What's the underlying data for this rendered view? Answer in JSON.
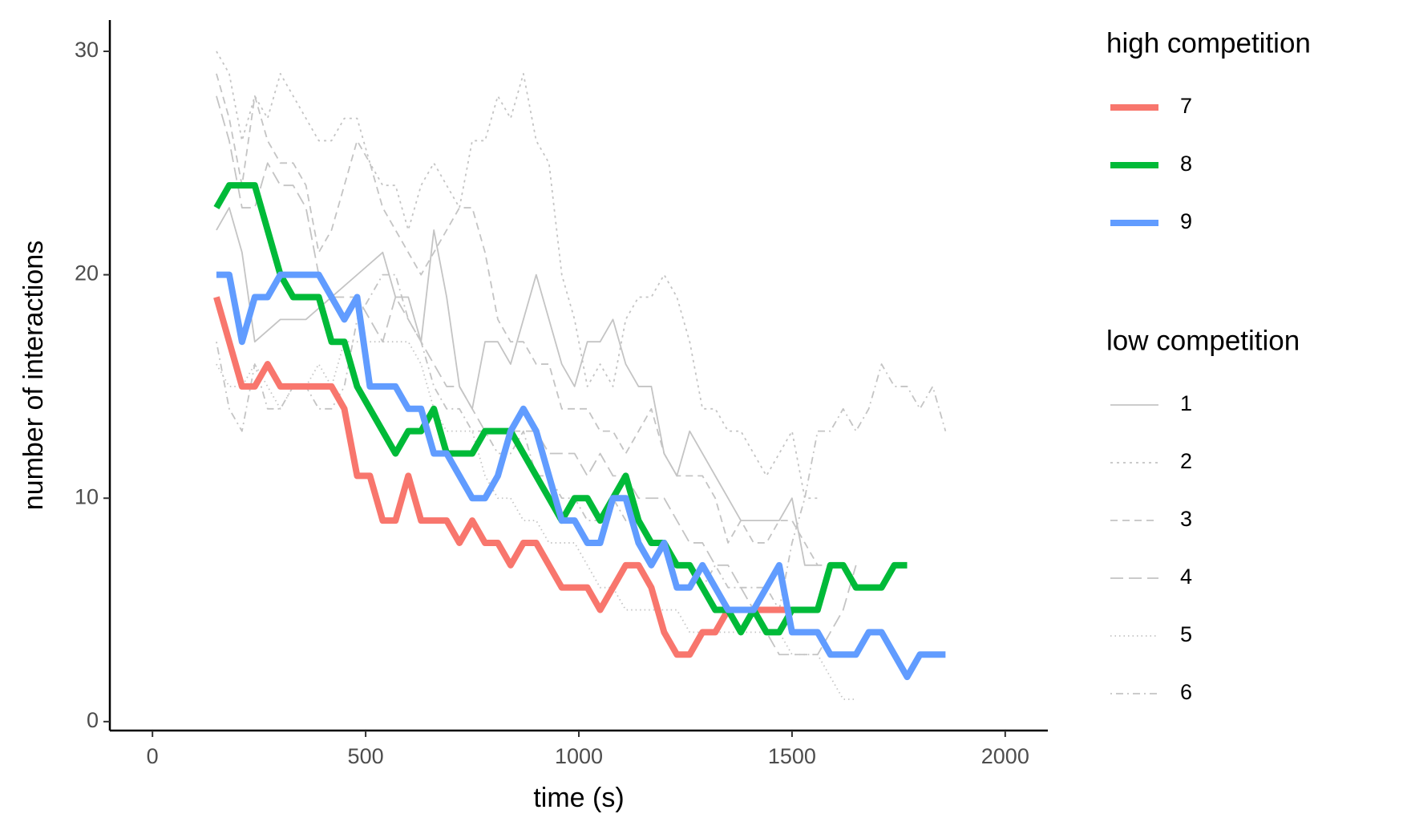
{
  "chart_data": {
    "type": "line",
    "x_label": "time (s)",
    "y_label": "number of interactions",
    "xlim": [
      -100,
      2100
    ],
    "ylim": [
      -0.4,
      31.4
    ],
    "xticks": [
      0,
      500,
      1000,
      1500,
      2000
    ],
    "yticks": [
      0,
      10,
      20,
      30
    ],
    "grid": false,
    "groups": [
      {
        "title": "high competition",
        "series": [
          {
            "name": "7",
            "color": "#f8766d",
            "linetype": "solid",
            "x": [
              150,
              180,
              210,
              240,
              270,
              300,
              330,
              360,
              390,
              420,
              450,
              480,
              510,
              540,
              570,
              600,
              630,
              660,
              690,
              720,
              750,
              780,
              810,
              840,
              870,
              900,
              930,
              960,
              990,
              1020,
              1050,
              1080,
              1110,
              1140,
              1170,
              1200,
              1230,
              1260,
              1290,
              1320,
              1350,
              1380,
              1410,
              1440,
              1470,
              1500,
              1530,
              1560
            ],
            "values": [
              19,
              17,
              15,
              15,
              16,
              15,
              15,
              15,
              15,
              15,
              14,
              11,
              11,
              9,
              9,
              11,
              9,
              9,
              9,
              8,
              9,
              8,
              8,
              7,
              8,
              8,
              7,
              6,
              6,
              6,
              5,
              6,
              7,
              7,
              6,
              4,
              3,
              3,
              4,
              4,
              5,
              5,
              5,
              5,
              5,
              5,
              5,
              5
            ]
          },
          {
            "name": "8",
            "color": "#00ba38",
            "linetype": "solid",
            "x": [
              150,
              180,
              210,
              240,
              270,
              300,
              330,
              360,
              390,
              420,
              450,
              480,
              510,
              540,
              570,
              600,
              630,
              660,
              690,
              720,
              750,
              780,
              810,
              840,
              870,
              900,
              930,
              960,
              990,
              1020,
              1050,
              1080,
              1110,
              1140,
              1170,
              1200,
              1230,
              1260,
              1290,
              1320,
              1350,
              1380,
              1410,
              1440,
              1470,
              1500,
              1530,
              1560,
              1590,
              1620,
              1650,
              1680,
              1710,
              1740,
              1770
            ],
            "values": [
              23,
              24,
              24,
              24,
              22,
              20,
              19,
              19,
              19,
              17,
              17,
              15,
              14,
              13,
              12,
              13,
              13,
              14,
              12,
              12,
              12,
              13,
              13,
              13,
              12,
              11,
              10,
              9,
              10,
              10,
              9,
              10,
              11,
              9,
              8,
              8,
              7,
              7,
              6,
              5,
              5,
              4,
              5,
              4,
              4,
              5,
              5,
              5,
              7,
              7,
              6,
              6,
              6,
              7,
              7
            ]
          },
          {
            "name": "9",
            "color": "#619cff",
            "linetype": "solid",
            "x": [
              150,
              180,
              210,
              240,
              270,
              300,
              330,
              360,
              390,
              420,
              450,
              480,
              510,
              540,
              570,
              600,
              630,
              660,
              690,
              720,
              750,
              780,
              810,
              840,
              870,
              900,
              930,
              960,
              990,
              1020,
              1050,
              1080,
              1110,
              1140,
              1170,
              1200,
              1230,
              1260,
              1290,
              1320,
              1350,
              1380,
              1410,
              1440,
              1470,
              1500,
              1530,
              1560,
              1590,
              1620,
              1650,
              1680,
              1710,
              1740,
              1770,
              1800,
              1830,
              1860
            ],
            "values": [
              20,
              20,
              17,
              19,
              19,
              20,
              20,
              20,
              20,
              19,
              18,
              19,
              15,
              15,
              15,
              14,
              14,
              12,
              12,
              11,
              10,
              10,
              11,
              13,
              14,
              13,
              11,
              9,
              9,
              8,
              8,
              10,
              10,
              8,
              7,
              8,
              6,
              6,
              7,
              6,
              5,
              5,
              5,
              6,
              7,
              4,
              4,
              4,
              3,
              3,
              3,
              4,
              4,
              3,
              2,
              3,
              3,
              3
            ]
          }
        ]
      },
      {
        "title": "low competition",
        "series": [
          {
            "name": "1",
            "color": "#c4c4c4",
            "linetype": "solid",
            "x": [
              150,
              180,
              210,
              240,
              300,
              360,
              420,
              480,
              540,
              570,
              600,
              630,
              660,
              690,
              720,
              750,
              780,
              810,
              840,
              870,
              900,
              930,
              960,
              990,
              1020,
              1050,
              1080,
              1110,
              1140,
              1170,
              1200,
              1230,
              1260,
              1320,
              1350,
              1380,
              1440,
              1470,
              1500,
              1530,
              1560
            ],
            "values": [
              22,
              23,
              21,
              17,
              18,
              18,
              19,
              20,
              21,
              19,
              19,
              17,
              22,
              19,
              15,
              14,
              17,
              17,
              16,
              18,
              20,
              18,
              16,
              15,
              17,
              17,
              18,
              16,
              15,
              15,
              12,
              11,
              13,
              11,
              10,
              9,
              9,
              9,
              10,
              7,
              7
            ]
          },
          {
            "name": "2",
            "color": "#c4c4c4",
            "linetype": "dotted",
            "x": [
              150,
              180,
              210,
              240,
              270,
              300,
              330,
              360,
              390,
              420,
              450,
              480,
              510,
              540,
              570,
              600,
              630,
              660,
              690,
              720,
              750,
              780,
              810,
              840,
              870,
              900,
              930,
              960,
              990,
              1020,
              1050,
              1080,
              1110,
              1140,
              1170,
              1200,
              1230,
              1260,
              1290,
              1320,
              1350,
              1380,
              1410,
              1440,
              1470,
              1500,
              1530,
              1560
            ],
            "values": [
              30,
              29,
              26,
              28,
              27,
              29,
              28,
              27,
              26,
              26,
              27,
              27,
              25,
              24,
              24,
              22,
              24,
              25,
              24,
              23,
              26,
              26,
              28,
              27,
              29,
              26,
              25,
              20,
              18,
              15,
              16,
              15,
              18,
              19,
              19,
              20,
              19,
              17,
              14,
              14,
              13,
              13,
              12,
              11,
              12,
              13,
              10,
              10
            ]
          },
          {
            "name": "3",
            "color": "#c4c4c4",
            "linetype": "dashed",
            "x": [
              150,
              180,
              210,
              240,
              270,
              300,
              330,
              360,
              390,
              420,
              450,
              480,
              510,
              540,
              570,
              600,
              630,
              660,
              690,
              720,
              750,
              780,
              810,
              840,
              870,
              900,
              930,
              960,
              990,
              1020,
              1050,
              1080,
              1110,
              1140,
              1170,
              1200,
              1230,
              1260,
              1290,
              1320,
              1350,
              1380,
              1410,
              1440,
              1470,
              1500,
              1530,
              1560,
              1590
            ],
            "values": [
              29,
              27,
              24,
              28,
              26,
              25,
              25,
              24,
              21,
              22,
              24,
              26,
              25,
              23,
              22,
              21,
              20,
              21,
              22,
              23,
              23,
              21,
              18,
              17,
              17,
              16,
              16,
              14,
              14,
              14,
              13,
              13,
              12,
              13,
              14,
              12,
              11,
              11,
              11,
              10,
              8,
              9,
              8,
              8,
              9,
              9,
              8,
              7,
              7
            ]
          },
          {
            "name": "4",
            "color": "#c4c4c4",
            "linetype": "longdash",
            "x": [
              150,
              180,
              210,
              240,
              270,
              300,
              330,
              360,
              390,
              420,
              450,
              480,
              510,
              540,
              570,
              600,
              630,
              660,
              690,
              720,
              750,
              780,
              810,
              840,
              870,
              900,
              930,
              960,
              990,
              1020,
              1050,
              1080,
              1110,
              1140,
              1170,
              1200,
              1230,
              1260,
              1290,
              1320,
              1350,
              1380,
              1410,
              1440,
              1470,
              1500,
              1530,
              1560,
              1590,
              1620,
              1650
            ],
            "values": [
              28,
              26,
              23,
              23,
              25,
              24,
              24,
              23,
              20,
              19,
              19,
              19,
              18,
              17,
              19,
              18,
              17,
              16,
              15,
              15,
              14,
              13,
              13,
              13,
              13,
              13,
              12,
              12,
              12,
              11,
              12,
              11,
              11,
              10,
              10,
              10,
              9,
              8,
              8,
              7,
              7,
              6,
              5,
              4,
              3,
              3,
              3,
              3,
              4,
              5,
              7
            ]
          },
          {
            "name": "5",
            "color": "#c4c4c4",
            "linetype": "fine",
            "x": [
              150,
              180,
              210,
              240,
              270,
              300,
              330,
              360,
              390,
              420,
              450,
              480,
              510,
              540,
              570,
              600,
              630,
              660,
              690,
              720,
              750,
              780,
              810,
              840,
              870,
              900,
              930,
              960,
              990,
              1020,
              1050,
              1080,
              1110,
              1140,
              1170,
              1200,
              1230,
              1260,
              1290,
              1320,
              1350,
              1380,
              1410,
              1440,
              1470,
              1500,
              1530,
              1560,
              1590,
              1620,
              1650
            ],
            "values": [
              16,
              15,
              15,
              16,
              15,
              14,
              15,
              15,
              16,
              15,
              17,
              17,
              17,
              17,
              17,
              17,
              16,
              14,
              13,
              13,
              13,
              11,
              10,
              10,
              9,
              9,
              8,
              8,
              8,
              7,
              6,
              6,
              5,
              5,
              5,
              5,
              5,
              4,
              4,
              4,
              4,
              4,
              4,
              4,
              4,
              3,
              3,
              3,
              2,
              1,
              1
            ]
          },
          {
            "name": "6",
            "color": "#c4c4c4",
            "linetype": "dotdash",
            "x": [
              150,
              180,
              210,
              240,
              270,
              300,
              330,
              360,
              390,
              420,
              450,
              480,
              510,
              540,
              570,
              600,
              630,
              660,
              690,
              720,
              750,
              780,
              810,
              840,
              870,
              900,
              930,
              960,
              990,
              1020,
              1050,
              1080,
              1110,
              1140,
              1170,
              1200,
              1230,
              1260,
              1290,
              1320,
              1350,
              1380,
              1410,
              1440,
              1470,
              1500,
              1530,
              1560,
              1590,
              1620,
              1650,
              1680,
              1710,
              1740,
              1770,
              1800,
              1830,
              1860
            ],
            "values": [
              17,
              14,
              13,
              16,
              14,
              14,
              15,
              15,
              14,
              14,
              15,
              18,
              19,
              20,
              20,
              18,
              17,
              15,
              14,
              14,
              13,
              13,
              12,
              12,
              13,
              11,
              11,
              10,
              10,
              9,
              9,
              10,
              9,
              9,
              8,
              8,
              7,
              7,
              6,
              7,
              6,
              6,
              6,
              6,
              5,
              8,
              10,
              13,
              13,
              14,
              13,
              14,
              16,
              15,
              15,
              14,
              15,
              13
            ]
          }
        ]
      }
    ]
  }
}
